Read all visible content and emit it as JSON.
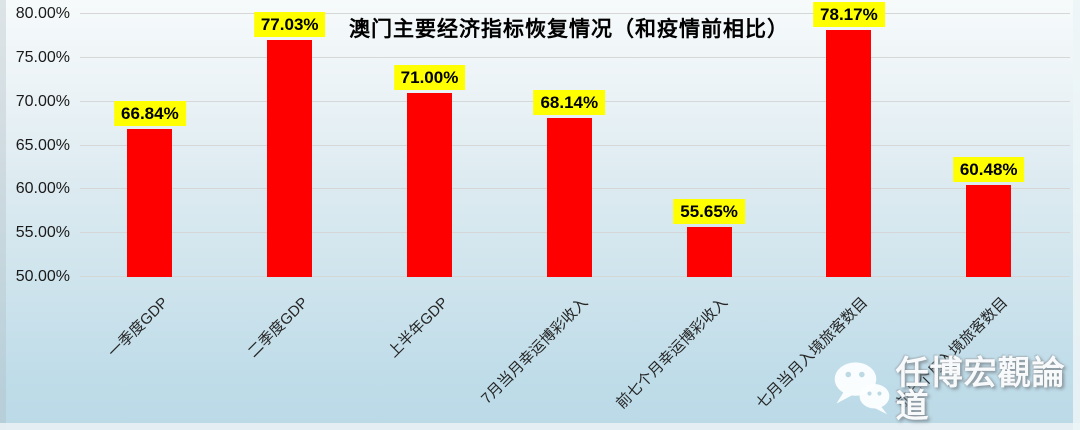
{
  "chart_data": {
    "type": "bar",
    "title": "澳门主要经济指标恢复情况（和疫情前相比）",
    "categories": [
      "一季度GDP",
      "二季度GDP",
      "上半年GDP",
      "7月当月幸运博彩收入",
      "前七个月幸运博彩收入",
      "七月当月入境旅客数目",
      "前七个月入境旅客数目"
    ],
    "values": [
      66.84,
      77.03,
      71.0,
      68.14,
      55.65,
      78.17,
      60.48
    ],
    "value_labels": [
      "66.84%",
      "77.03%",
      "71.00%",
      "68.14%",
      "55.65%",
      "78.17%",
      "60.48%"
    ],
    "xlabel": "",
    "ylabel": "",
    "ylim": [
      50,
      80
    ],
    "yticks": [
      50,
      55,
      60,
      65,
      70,
      75,
      80
    ],
    "ytick_labels": [
      "50.00%",
      "55.00%",
      "60.00%",
      "65.00%",
      "70.00%",
      "75.00%",
      "80.00%"
    ],
    "grid": true,
    "legend": false,
    "bar_color": "#ff0000",
    "value_label_bg": "#ffff00",
    "value_label_color": "#000000"
  },
  "watermark": {
    "text": "任博宏觀論道",
    "icon": "wechat-icon"
  }
}
